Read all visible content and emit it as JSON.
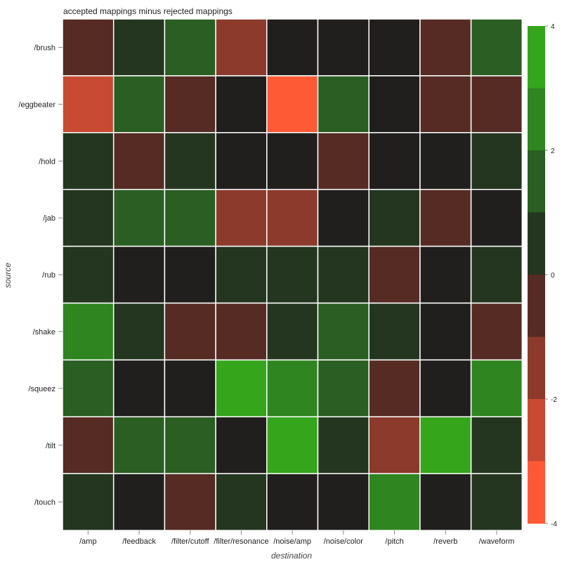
{
  "chart_data": {
    "type": "heatmap",
    "title": "accepted mappings minus rejected mappings",
    "xlabel": "destination",
    "ylabel": "source",
    "x_categories": [
      "/amp",
      "/feedback",
      "/filter/cutoff",
      "/filter/resonance",
      "/noise/amp",
      "/noise/color",
      "/pitch",
      "/reverb",
      "/waveform"
    ],
    "y_categories": [
      "/brush",
      "/eggbeater",
      "/hold",
      "/jab",
      "/rub",
      "/shake",
      "/squeez",
      "/tilt",
      "/touch"
    ],
    "values": [
      [
        -1,
        1,
        2,
        -2,
        0,
        0,
        0,
        -1,
        2
      ],
      [
        -3,
        2,
        -1,
        0,
        -4,
        2,
        0,
        -1,
        -1
      ],
      [
        1,
        -1,
        1,
        0,
        0,
        -1,
        0,
        0,
        1
      ],
      [
        1,
        2,
        2,
        -2,
        -2,
        0,
        1,
        -1,
        0
      ],
      [
        1,
        0,
        0,
        1,
        1,
        1,
        -1,
        0,
        1
      ],
      [
        3,
        1,
        -1,
        -1,
        1,
        2,
        1,
        0,
        -1
      ],
      [
        2,
        0,
        0,
        4,
        3,
        2,
        -1,
        0,
        3
      ],
      [
        -1,
        2,
        2,
        0,
        4,
        1,
        -2,
        4,
        1
      ],
      [
        1,
        0,
        -1,
        1,
        0,
        0,
        3,
        0,
        1
      ]
    ],
    "color_range": [
      -4,
      4
    ],
    "colorbar_ticks": [
      4,
      2,
      0,
      -2,
      -4
    ],
    "colorbar_tick_labels": [
      "4",
      "2",
      "0",
      "-2",
      "-4"
    ],
    "colors": {
      "-4": "#ff5a36",
      "-3": "#c84a33",
      "-2": "#8b3a2c",
      "-1": "#552b24",
      "0": "#201f1d",
      "1": "#243620",
      "2": "#2b5e22",
      "3": "#2f8520",
      "4": "#35a51c"
    }
  }
}
